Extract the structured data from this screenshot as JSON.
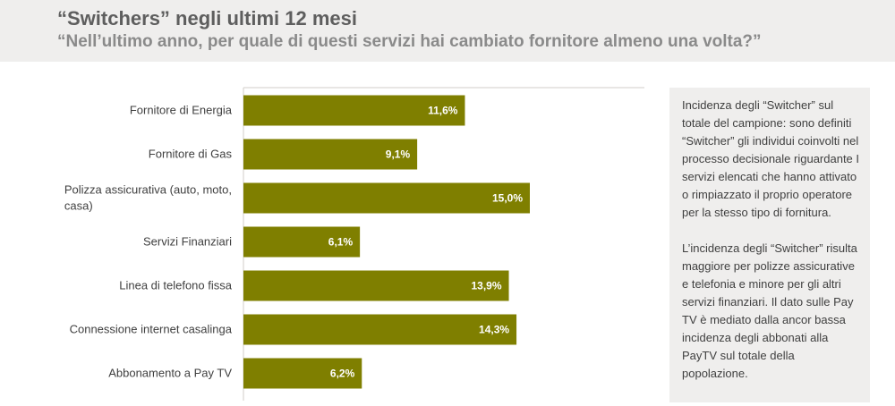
{
  "header": {
    "title": "“Switchers” negli ultimi 12 mesi",
    "subtitle": "“Nell’ultimo anno, per quale di questi servizi hai cambiato fornitore almeno una volta?”"
  },
  "chart_data": {
    "type": "bar",
    "orientation": "horizontal",
    "categories": [
      "Fornitore di Energia",
      "Fornitore di Gas",
      "Polizza assicurativa (auto, moto, casa)",
      "Servizi Finanziari",
      "Linea di telefono fissa",
      "Connessione internet casalinga",
      "Abbonamento a Pay TV"
    ],
    "values": [
      11.6,
      9.1,
      15.0,
      6.1,
      13.9,
      14.3,
      6.2
    ],
    "value_labels": [
      "11,6%",
      "9,1%",
      "15,0%",
      "6,1%",
      "13,9%",
      "14,3%",
      "6,2%"
    ],
    "bar_color": "#7f7f00",
    "xlim": [
      0,
      21
    ],
    "unit": "%"
  },
  "note": {
    "paragraph_1": "Incidenza degli “Switcher” sul totale del campione: sono definiti “Switcher” gli individui coinvolti nel processo decisionale riguardante I servizi elencati che hanno attivato o rimpiazzato il proprio operatore per la stesso tipo di fornitura.",
    "paragraph_2": "L’incidenza degli “Switcher” risulta maggiore per polizze assicurative e telefonia e minore per gli altri servizi finanziari. Il dato sulle Pay TV è mediato dalla ancor bassa incidenza degli abbonati alla PayTV sul totale della popolazione."
  },
  "colors": {
    "header_bg": "#efeeed",
    "note_bg": "#efeeed",
    "gridline": "#d0cdc8"
  }
}
